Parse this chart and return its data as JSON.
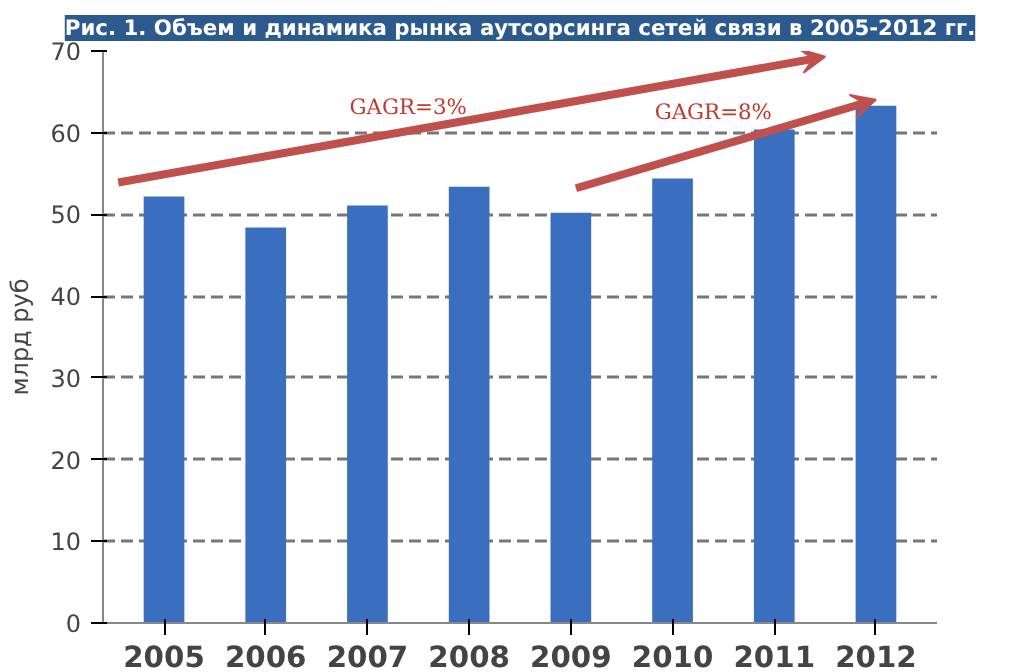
{
  "chart_data": {
    "type": "bar",
    "title": "Рис. 1. Объем и динамика рынка аутсорсинга сетей связи в 2005-2012 гг.",
    "ylabel": "млрд руб",
    "categories": [
      "2005",
      "2006",
      "2007",
      "2008",
      "2009",
      "2010",
      "2011",
      "2012"
    ],
    "series": [
      {
        "color": "#3a6fc0",
        "values": [
          52.2,
          48.4,
          51.1,
          53.4,
          50.2,
          54.4,
          60.4,
          63.3
        ]
      }
    ],
    "annotations": [
      "GAGR=3%",
      "GAGR=8%"
    ],
    "ylim": [
      0,
      70
    ],
    "yticks": [
      0,
      10,
      20,
      30,
      40,
      50,
      60,
      70
    ],
    "grid": "y"
  }
}
